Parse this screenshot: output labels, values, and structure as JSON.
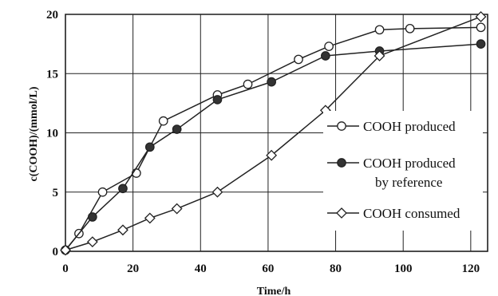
{
  "chart_data": {
    "type": "line",
    "title": "",
    "xlabel": "Time/h",
    "ylabel": "c(COOH)/(mmol/L)",
    "xlim": [
      0,
      125
    ],
    "ylim": [
      0,
      20
    ],
    "xticks": [
      0,
      20,
      40,
      60,
      80,
      100,
      120
    ],
    "yticks": [
      0,
      5,
      10,
      15,
      20
    ],
    "grid": true,
    "legend_position": "right",
    "series": [
      {
        "name": "COOH produced",
        "marker": "open-circle",
        "x": [
          0,
          4,
          11,
          21,
          29,
          45,
          54,
          69,
          78,
          93,
          102,
          123
        ],
        "y": [
          0.1,
          1.5,
          5.0,
          6.6,
          11.0,
          13.2,
          14.1,
          16.2,
          17.3,
          18.7,
          18.8,
          18.9
        ]
      },
      {
        "name": "COOH produced by reference",
        "legend_lines": [
          "COOH produced",
          "by reference"
        ],
        "marker": "filled-circle",
        "x": [
          0,
          8,
          17,
          25,
          33,
          45,
          61,
          77,
          93,
          123
        ],
        "y": [
          0.1,
          2.9,
          5.3,
          8.8,
          10.3,
          12.8,
          14.3,
          16.5,
          16.9,
          17.5
        ]
      },
      {
        "name": "COOH consumed",
        "marker": "open-diamond",
        "x": [
          0,
          8,
          17,
          25,
          33,
          45,
          61,
          77,
          93,
          123
        ],
        "y": [
          0.1,
          0.8,
          1.8,
          2.8,
          3.6,
          5.0,
          8.1,
          11.9,
          16.5,
          19.8
        ]
      }
    ]
  }
}
